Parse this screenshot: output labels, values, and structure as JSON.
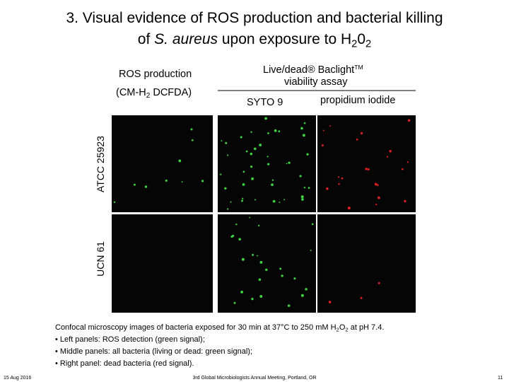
{
  "title": {
    "line1": "3. Visual evidence of ROS production and bacterial killing",
    "line2": [
      "of ",
      "S. aureus",
      " upon exposure to H",
      "2",
      "0",
      "2"
    ]
  },
  "headers": {
    "ros": "ROS production",
    "probe": [
      "(CM-H",
      "2",
      " DCFDA)"
    ],
    "livedead": [
      "Live/dead® Baclight",
      "TM"
    ],
    "assay": "viability assay",
    "syto": "SYTO 9",
    "pi": "propidium iodide"
  },
  "rows": [
    "ATCC 25923",
    "UCN 61"
  ],
  "caption": {
    "line1": [
      "Confocal microscopy images of bacteria exposed for 30 min at 37°C to 250 mM H",
      "2",
      "O",
      "2",
      " at pH 7.4."
    ],
    "bullets": [
      "• Left panels: ROS detection (green signal);",
      "• Middle panels: all bacteria (living or dead: green signal);",
      "• Right panel: dead bacteria (red signal)."
    ]
  },
  "footer": {
    "date": "15 Aug 2016",
    "event": "3rd Global Microbiologists Annual Meeting, Portland, OR",
    "page": "11"
  }
}
